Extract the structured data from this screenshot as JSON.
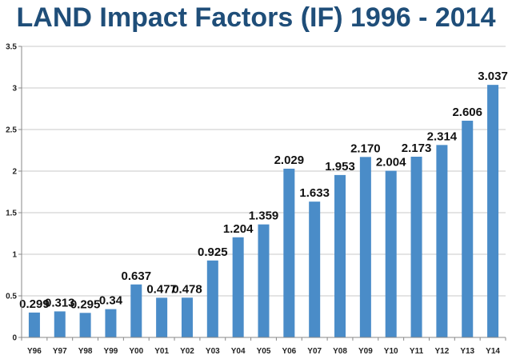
{
  "chart_data": {
    "type": "bar",
    "title": "LAND Impact Factors (IF) 1996 - 2014",
    "xlabel": "",
    "ylabel": "",
    "ylim": [
      0,
      3.5
    ],
    "yticks": [
      "0",
      "0.5",
      "1",
      "1.5",
      "2",
      "2.5",
      "3",
      "3.5"
    ],
    "grid": true,
    "bar_color": "#4a8cc8",
    "categories": [
      "Y96",
      "Y97",
      "Y98",
      "Y99",
      "Y00",
      "Y01",
      "Y02",
      "Y03",
      "Y04",
      "Y05",
      "Y06",
      "Y07",
      "Y08",
      "Y09",
      "Y10",
      "Y11",
      "Y12",
      "Y13",
      "Y14"
    ],
    "values": [
      0.299,
      0.313,
      0.295,
      0.34,
      0.637,
      0.477,
      0.478,
      0.925,
      1.204,
      1.359,
      2.029,
      1.633,
      1.953,
      2.17,
      2.004,
      2.173,
      2.314,
      2.606,
      3.037
    ],
    "value_labels": [
      "0.299",
      "0.313",
      "0.295",
      "0.34",
      "0.637",
      "0.477",
      "0.478",
      "0.925",
      "1.204",
      "1.359",
      "2.029",
      "1.633",
      "1.953",
      "2.170",
      "2.004",
      "2.173",
      "2.314",
      "2.606",
      "3.037"
    ]
  }
}
